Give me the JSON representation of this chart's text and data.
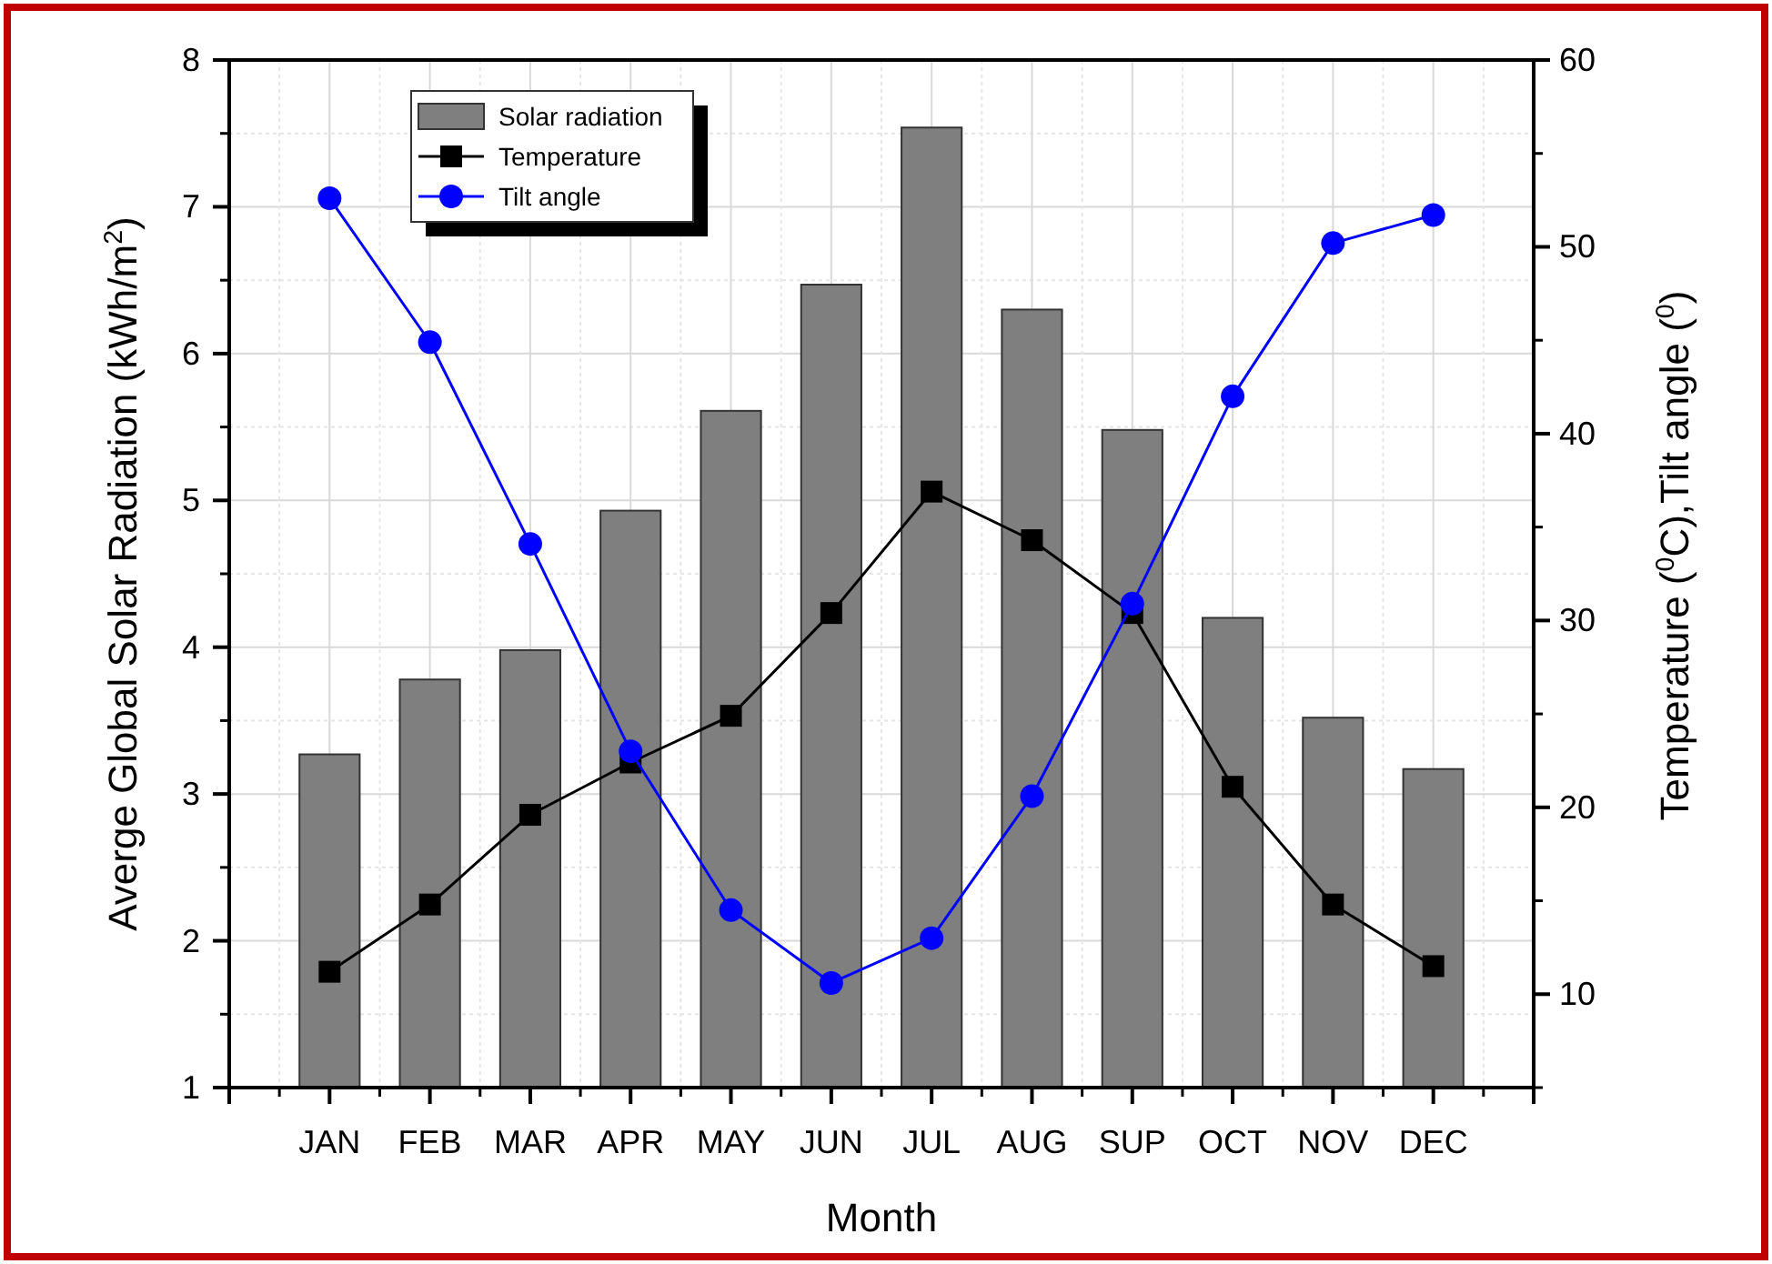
{
  "chart_data": {
    "type": "bar",
    "xlabel": "Month",
    "ylabel": "Averge Global Solar Radiation (kWh/m$^{2}$)",
    "y2label": "Temperature ($^{0}$C),Tilt angle ($^{0}$)",
    "categories": [
      "JAN",
      "FEB",
      "MAR",
      "APR",
      "MAY",
      "JUN",
      "JUL",
      "AUG",
      "SUP",
      "OCT",
      "NOV",
      "DEC"
    ],
    "series": [
      {
        "name": "Solar radiation",
        "color": "#7f7f7f",
        "values": [
          3.27,
          3.78,
          3.98,
          4.93,
          5.61,
          6.47,
          7.54,
          6.3,
          5.48,
          4.2,
          3.52,
          3.17
        ]
      },
      {
        "name": "Temperature",
        "type": "line",
        "axis": "y2",
        "color": "#000000",
        "marker": "square",
        "values": [
          11.2,
          14.8,
          19.6,
          22.4,
          24.9,
          30.4,
          36.9,
          34.3,
          30.4,
          21.1,
          14.8,
          11.5
        ]
      },
      {
        "name": "Tilt angle",
        "type": "line",
        "axis": "y2",
        "color": "#0000ff",
        "marker": "circle",
        "values": [
          52.6,
          44.9,
          34.1,
          23.0,
          14.5,
          10.6,
          13.0,
          20.6,
          30.9,
          42.0,
          50.2,
          51.7
        ]
      }
    ],
    "ylim": [
      1,
      8
    ],
    "yticks": [
      1,
      2,
      3,
      4,
      5,
      6,
      7,
      8
    ],
    "y2lim": [
      5,
      60
    ],
    "y2ticks": [
      10,
      20,
      30,
      40,
      50,
      60
    ],
    "grid": true,
    "legend": "top left"
  }
}
